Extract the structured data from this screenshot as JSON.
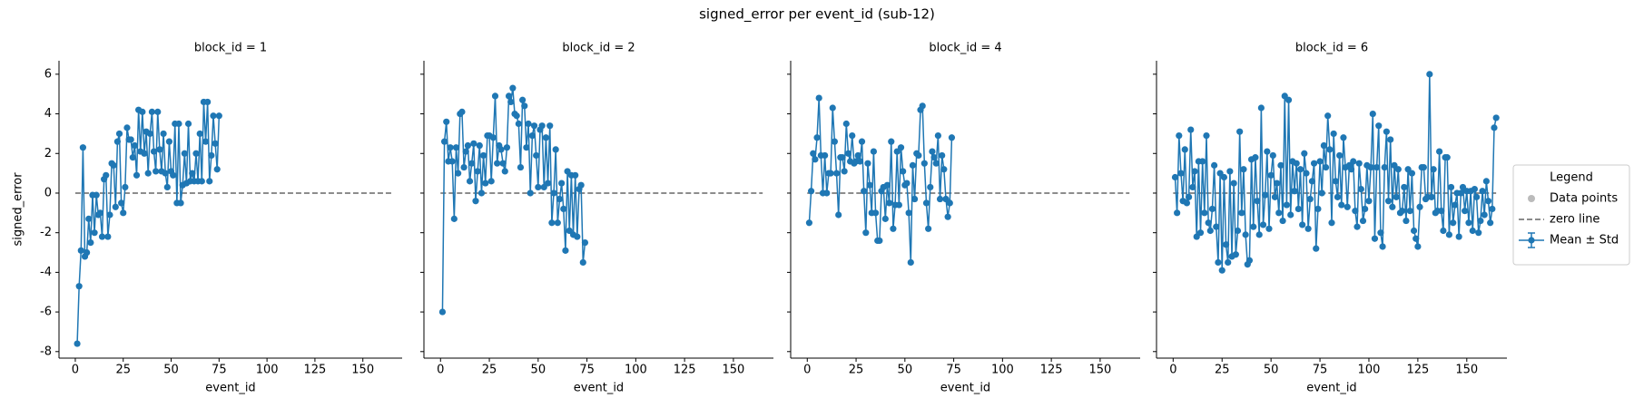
{
  "chart_data": {
    "type": "line",
    "title": "signed_error per event_id (sub-12)",
    "x_label": "event_id",
    "y_label": "signed_error",
    "color": "#1f77b4",
    "xlim": [
      -8.5,
      170.5
    ],
    "xticks": [
      0,
      25,
      50,
      75,
      100,
      125,
      150
    ],
    "ylim": [
      -8.33,
      6.68
    ],
    "yticks": [
      -8,
      -6,
      -4,
      -2,
      0,
      2,
      4,
      6
    ],
    "zero_line": {
      "name": "zero line",
      "y": 0,
      "x": [
        0,
        165
      ],
      "color": "#666666"
    },
    "legend": {
      "title": "Legend",
      "points_name": "Data points",
      "points_color": "#bbbbbb",
      "series_name": "Mean ± Std"
    },
    "panels": [
      {
        "title": "block_id = 1",
        "x": [
          1,
          2,
          3,
          4,
          5,
          6,
          7,
          8,
          9,
          10,
          11,
          12,
          13,
          14,
          15,
          16,
          17,
          18,
          19,
          20,
          21,
          22,
          23,
          24,
          25,
          26,
          27,
          28,
          29,
          30,
          31,
          32,
          33,
          34,
          35,
          36,
          37,
          38,
          39,
          40,
          41,
          42,
          43,
          44,
          45,
          46,
          47,
          48,
          49,
          50,
          51,
          52,
          53,
          54,
          55,
          56,
          57,
          58,
          59,
          60,
          61,
          62,
          63,
          64,
          65,
          66,
          67,
          68,
          69,
          70,
          71,
          72,
          73,
          74,
          75
        ],
        "values": [
          -7.6,
          -4.7,
          -2.9,
          2.3,
          -3.2,
          -3.0,
          -1.3,
          -2.5,
          -0.1,
          -2.0,
          -0.1,
          -1.1,
          -1.0,
          -2.2,
          0.7,
          0.9,
          -2.2,
          -1.1,
          1.5,
          1.4,
          -0.7,
          2.6,
          3.0,
          -0.5,
          -1.0,
          0.3,
          3.3,
          2.7,
          2.7,
          1.8,
          2.4,
          0.9,
          4.2,
          2.1,
          4.1,
          2.0,
          3.1,
          1.0,
          3.0,
          4.1,
          2.1,
          1.1,
          4.1,
          2.2,
          1.1,
          3.0,
          1.0,
          0.3,
          2.6,
          1.1,
          0.9,
          3.5,
          -0.5,
          3.5,
          -0.5,
          0.4,
          2.0,
          0.5,
          3.5,
          0.6,
          1.0,
          0.6,
          2.0,
          0.6,
          3.0,
          0.6,
          4.6,
          2.6,
          4.6,
          0.6,
          1.9,
          3.9,
          2.5,
          1.2,
          3.9
        ]
      },
      {
        "title": "block_id = 2",
        "x": [
          1,
          2,
          3,
          4,
          5,
          6,
          7,
          8,
          9,
          10,
          11,
          12,
          13,
          14,
          15,
          16,
          17,
          18,
          19,
          20,
          21,
          22,
          23,
          24,
          25,
          26,
          27,
          28,
          29,
          30,
          31,
          32,
          33,
          34,
          35,
          36,
          37,
          38,
          39,
          40,
          41,
          42,
          43,
          44,
          45,
          46,
          47,
          48,
          49,
          50,
          51,
          52,
          53,
          54,
          55,
          56,
          57,
          58,
          59,
          60,
          61,
          62,
          63,
          64,
          65,
          66,
          67,
          68,
          69,
          70,
          71,
          72,
          73,
          74
        ],
        "values": [
          -6.0,
          2.6,
          3.6,
          1.6,
          2.3,
          1.6,
          -1.3,
          2.3,
          1.0,
          4.0,
          4.1,
          1.3,
          2.1,
          2.4,
          0.6,
          1.5,
          2.5,
          -0.4,
          1.1,
          2.4,
          0.0,
          1.9,
          0.5,
          2.9,
          2.9,
          0.6,
          2.8,
          4.9,
          1.5,
          2.4,
          2.2,
          1.5,
          1.1,
          2.3,
          4.9,
          4.6,
          5.3,
          4.0,
          3.9,
          3.5,
          1.3,
          4.7,
          4.4,
          2.3,
          3.5,
          0.0,
          2.9,
          3.4,
          1.9,
          0.3,
          3.2,
          3.4,
          0.3,
          2.8,
          0.5,
          3.4,
          -1.5,
          0.0,
          2.2,
          -1.5,
          -0.3,
          0.5,
          -0.8,
          -2.9,
          1.1,
          -1.9,
          0.9,
          -2.1,
          0.9,
          -2.2,
          0.2,
          0.4,
          -3.5,
          -2.5
        ]
      },
      {
        "title": "block_id = 4",
        "x": [
          1,
          2,
          3,
          4,
          5,
          6,
          7,
          8,
          9,
          10,
          11,
          12,
          13,
          14,
          15,
          16,
          17,
          18,
          19,
          20,
          21,
          22,
          23,
          24,
          25,
          26,
          27,
          28,
          29,
          30,
          31,
          32,
          33,
          34,
          35,
          36,
          37,
          38,
          39,
          40,
          41,
          42,
          43,
          44,
          45,
          46,
          47,
          48,
          49,
          50,
          51,
          52,
          53,
          54,
          55,
          56,
          57,
          58,
          59,
          60,
          61,
          62,
          63,
          64,
          65,
          66,
          67,
          68,
          69,
          70,
          71,
          72,
          73,
          74
        ],
        "values": [
          -1.5,
          0.1,
          2.0,
          1.7,
          2.8,
          4.8,
          1.9,
          0.0,
          1.9,
          0.0,
          1.0,
          1.0,
          4.3,
          2.6,
          1.0,
          -1.1,
          1.8,
          1.8,
          1.1,
          3.5,
          2.0,
          1.6,
          2.9,
          1.5,
          1.6,
          1.9,
          1.6,
          2.6,
          0.1,
          -2.0,
          1.5,
          0.4,
          -1.0,
          2.1,
          -1.0,
          -2.4,
          -2.4,
          0.1,
          0.3,
          -1.3,
          0.4,
          -0.5,
          2.6,
          -1.8,
          -0.6,
          2.1,
          -0.6,
          2.3,
          1.1,
          0.4,
          0.5,
          -1.0,
          -3.5,
          1.4,
          -0.3,
          2.0,
          1.9,
          4.2,
          4.4,
          1.5,
          -0.5,
          -1.8,
          0.3,
          2.1,
          1.8,
          1.5,
          2.9,
          -0.3,
          1.9,
          1.2,
          -0.3,
          -1.2,
          -0.5,
          2.8
        ]
      },
      {
        "title": "block_id = 6",
        "x": [
          1,
          2,
          3,
          4,
          5,
          6,
          7,
          8,
          9,
          10,
          11,
          12,
          13,
          14,
          15,
          16,
          17,
          18,
          19,
          20,
          21,
          22,
          23,
          24,
          25,
          26,
          27,
          28,
          29,
          30,
          31,
          32,
          33,
          34,
          35,
          36,
          37,
          38,
          39,
          40,
          41,
          42,
          43,
          44,
          45,
          46,
          47,
          48,
          49,
          50,
          51,
          52,
          53,
          54,
          55,
          56,
          57,
          58,
          59,
          60,
          61,
          62,
          63,
          64,
          65,
          66,
          67,
          68,
          69,
          70,
          71,
          72,
          73,
          74,
          75,
          76,
          77,
          78,
          79,
          80,
          81,
          82,
          83,
          84,
          85,
          86,
          87,
          88,
          89,
          90,
          91,
          92,
          93,
          94,
          95,
          96,
          97,
          98,
          99,
          100,
          101,
          102,
          103,
          104,
          105,
          106,
          107,
          108,
          109,
          110,
          111,
          112,
          113,
          114,
          115,
          116,
          117,
          118,
          119,
          120,
          121,
          122,
          123,
          124,
          125,
          126,
          127,
          128,
          129,
          130,
          131,
          132,
          133,
          134,
          135,
          136,
          137,
          138,
          139,
          140,
          141,
          142,
          143,
          144,
          145,
          146,
          147,
          148,
          149,
          150,
          151,
          152,
          153,
          154,
          155,
          156,
          157,
          158,
          159,
          160,
          161,
          162,
          163,
          164,
          165
        ],
        "values": [
          0.8,
          -1.0,
          2.9,
          1.0,
          -0.4,
          2.2,
          -0.5,
          -0.2,
          3.2,
          0.3,
          1.1,
          -2.2,
          1.6,
          -2.0,
          1.6,
          -1.0,
          2.9,
          -1.5,
          -1.9,
          -0.8,
          1.4,
          -1.7,
          -3.5,
          1.0,
          -3.9,
          0.8,
          -2.6,
          -3.5,
          1.1,
          -3.2,
          0.5,
          -3.1,
          -1.9,
          3.1,
          -1.0,
          1.2,
          -2.1,
          -3.6,
          -3.4,
          1.7,
          -1.7,
          1.8,
          -0.4,
          -2.1,
          4.3,
          -1.6,
          -0.1,
          2.1,
          -1.8,
          0.9,
          1.9,
          -0.2,
          0.5,
          -1.0,
          1.4,
          -1.4,
          4.9,
          -0.6,
          4.7,
          -1.1,
          1.6,
          0.1,
          1.5,
          -0.8,
          1.2,
          -1.6,
          2.0,
          1.0,
          -1.8,
          -0.3,
          0.6,
          1.5,
          -2.8,
          -0.8,
          1.6,
          0.0,
          2.4,
          1.3,
          3.9,
          2.2,
          -1.5,
          3.0,
          0.6,
          -0.2,
          1.9,
          -0.6,
          2.8,
          1.3,
          -0.7,
          1.4,
          1.2,
          1.6,
          -0.9,
          -1.7,
          1.5,
          0.2,
          -1.4,
          -0.8,
          1.4,
          -0.4,
          1.3,
          4.0,
          -2.3,
          1.3,
          3.4,
          -2.0,
          -2.7,
          1.3,
          3.1,
          -0.4,
          2.7,
          -0.7,
          1.4,
          -0.2,
          1.2,
          -1.0,
          -0.9,
          0.3,
          -1.4,
          1.2,
          -0.9,
          1.0,
          -1.9,
          -2.3,
          -2.7,
          -0.7,
          1.3,
          1.3,
          -0.3,
          -0.2,
          6.0,
          -0.2,
          1.2,
          -1.0,
          -0.9,
          2.1,
          -0.9,
          -1.9,
          1.8,
          1.8,
          -2.1,
          0.3,
          -1.5,
          -0.6,
          0.0,
          -2.2,
          0.0,
          0.3,
          -0.9,
          0.1,
          -1.5,
          0.1,
          -1.9,
          0.2,
          -0.2,
          -2.0,
          -1.4,
          0.1,
          -1.1,
          0.6,
          -0.4,
          -1.5,
          -0.8,
          3.3,
          3.8
        ]
      }
    ]
  }
}
